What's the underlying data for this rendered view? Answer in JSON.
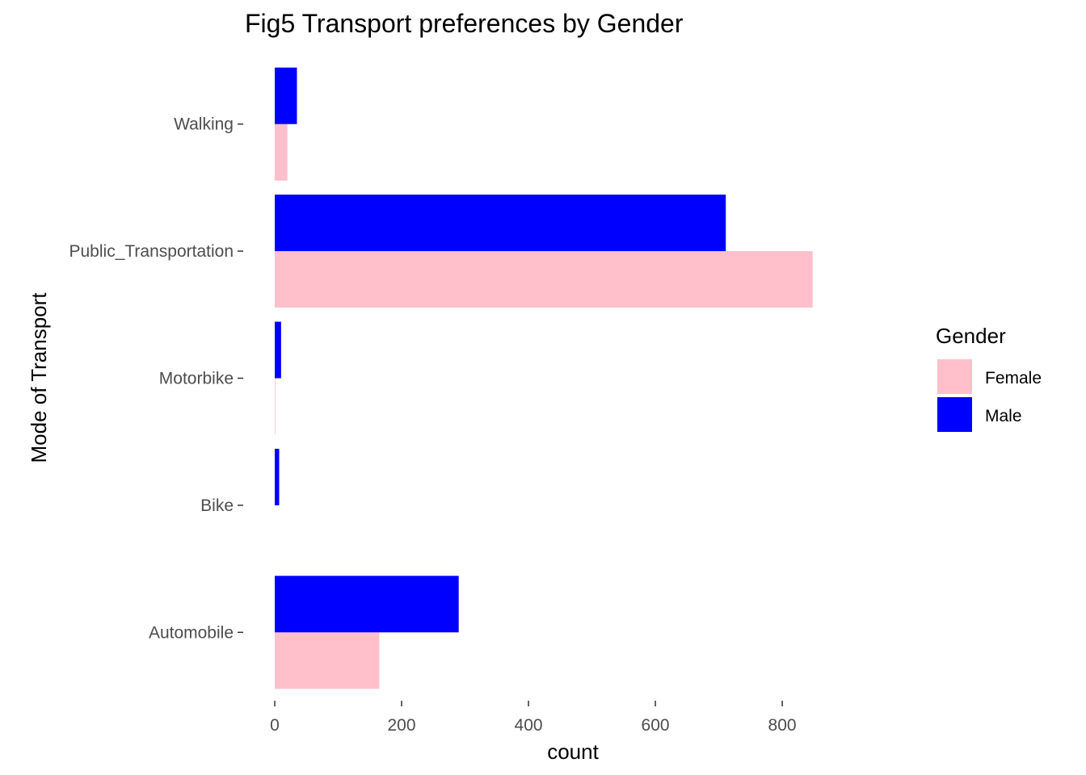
{
  "chart_data": {
    "type": "bar",
    "orientation": "horizontal",
    "title": "Fig5 Transport preferences by Gender",
    "xlabel": "count",
    "ylabel": "Mode of Transport",
    "categories": [
      "Automobile",
      "Bike",
      "Motorbike",
      "Public_Transportation",
      "Walking"
    ],
    "series": [
      {
        "name": "Female",
        "color": "#FFC0CB",
        "values": [
          165,
          0,
          1,
          848,
          20
        ]
      },
      {
        "name": "Male",
        "color": "#0000FF",
        "values": [
          290,
          7,
          10,
          711,
          35
        ]
      }
    ],
    "xlim": [
      0,
      940
    ],
    "xticks": [
      0,
      200,
      400,
      600,
      800
    ],
    "grid": false,
    "legend": {
      "title": "Gender",
      "position": "right"
    }
  }
}
